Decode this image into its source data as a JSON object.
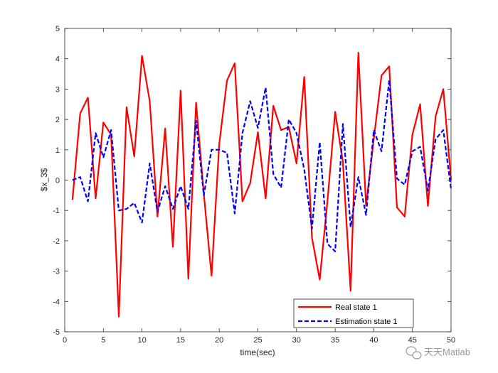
{
  "chart_data": {
    "type": "line",
    "xlabel": "time(sec)",
    "ylabel": "$x_3$",
    "xlim": [
      0,
      50
    ],
    "ylim": [
      -5,
      5
    ],
    "xticks": [
      0,
      5,
      10,
      15,
      20,
      25,
      30,
      35,
      40,
      45,
      50
    ],
    "yticks": [
      -5,
      -4,
      -3,
      -2,
      -1,
      0,
      1,
      2,
      3,
      4,
      5
    ],
    "grid": false,
    "legend_position": "bottom-right",
    "x": [
      1,
      2,
      3,
      4,
      5,
      6,
      7,
      8,
      9,
      10,
      11,
      12,
      13,
      14,
      15,
      16,
      17,
      18,
      19,
      20,
      21,
      22,
      23,
      24,
      25,
      26,
      27,
      28,
      29,
      30,
      31,
      32,
      33,
      34,
      35,
      36,
      37,
      38,
      39,
      40,
      41,
      42,
      43,
      44,
      45,
      46,
      47,
      48,
      49,
      50
    ],
    "series": [
      {
        "name": "Real state 1",
        "color": "#ff0000",
        "style": "solid",
        "values": [
          -0.65,
          2.2,
          2.72,
          -0.6,
          1.9,
          1.5,
          -4.5,
          2.4,
          0.78,
          4.1,
          2.6,
          -1.2,
          1.7,
          -2.2,
          2.95,
          -3.25,
          2.55,
          -0.45,
          -3.15,
          1.2,
          3.28,
          3.85,
          -0.7,
          -0.1,
          1.58,
          -0.6,
          2.45,
          1.65,
          1.75,
          0.55,
          3.4,
          -1.9,
          -3.28,
          -0.7,
          2.25,
          0.6,
          -3.65,
          4.2,
          -0.85,
          1.35,
          3.45,
          3.75,
          -0.9,
          -1.2,
          1.5,
          2.5,
          -0.85,
          2.1,
          3.0,
          0.0
        ]
      },
      {
        "name": "Estimation state 1",
        "color": "#0000ff",
        "style": "dashed",
        "values": [
          0.0,
          0.1,
          -0.7,
          1.55,
          0.75,
          1.65,
          -1.0,
          -0.95,
          -0.75,
          -1.4,
          0.55,
          -1.05,
          -0.2,
          -0.95,
          -0.2,
          -0.95,
          1.95,
          -0.5,
          1.0,
          1.0,
          0.9,
          -1.1,
          1.55,
          2.6,
          1.72,
          3.05,
          0.2,
          -0.25,
          2.0,
          1.55,
          0.35,
          -1.6,
          1.25,
          -2.1,
          -2.35,
          1.85,
          -1.55,
          0.1,
          -1.15,
          1.65,
          0.95,
          3.3,
          0.05,
          -0.15,
          0.95,
          1.1,
          -0.35,
          1.35,
          1.65,
          -0.3
        ]
      }
    ]
  },
  "watermark": {
    "text": "天天Matlab",
    "icon": "wechat-icon"
  }
}
